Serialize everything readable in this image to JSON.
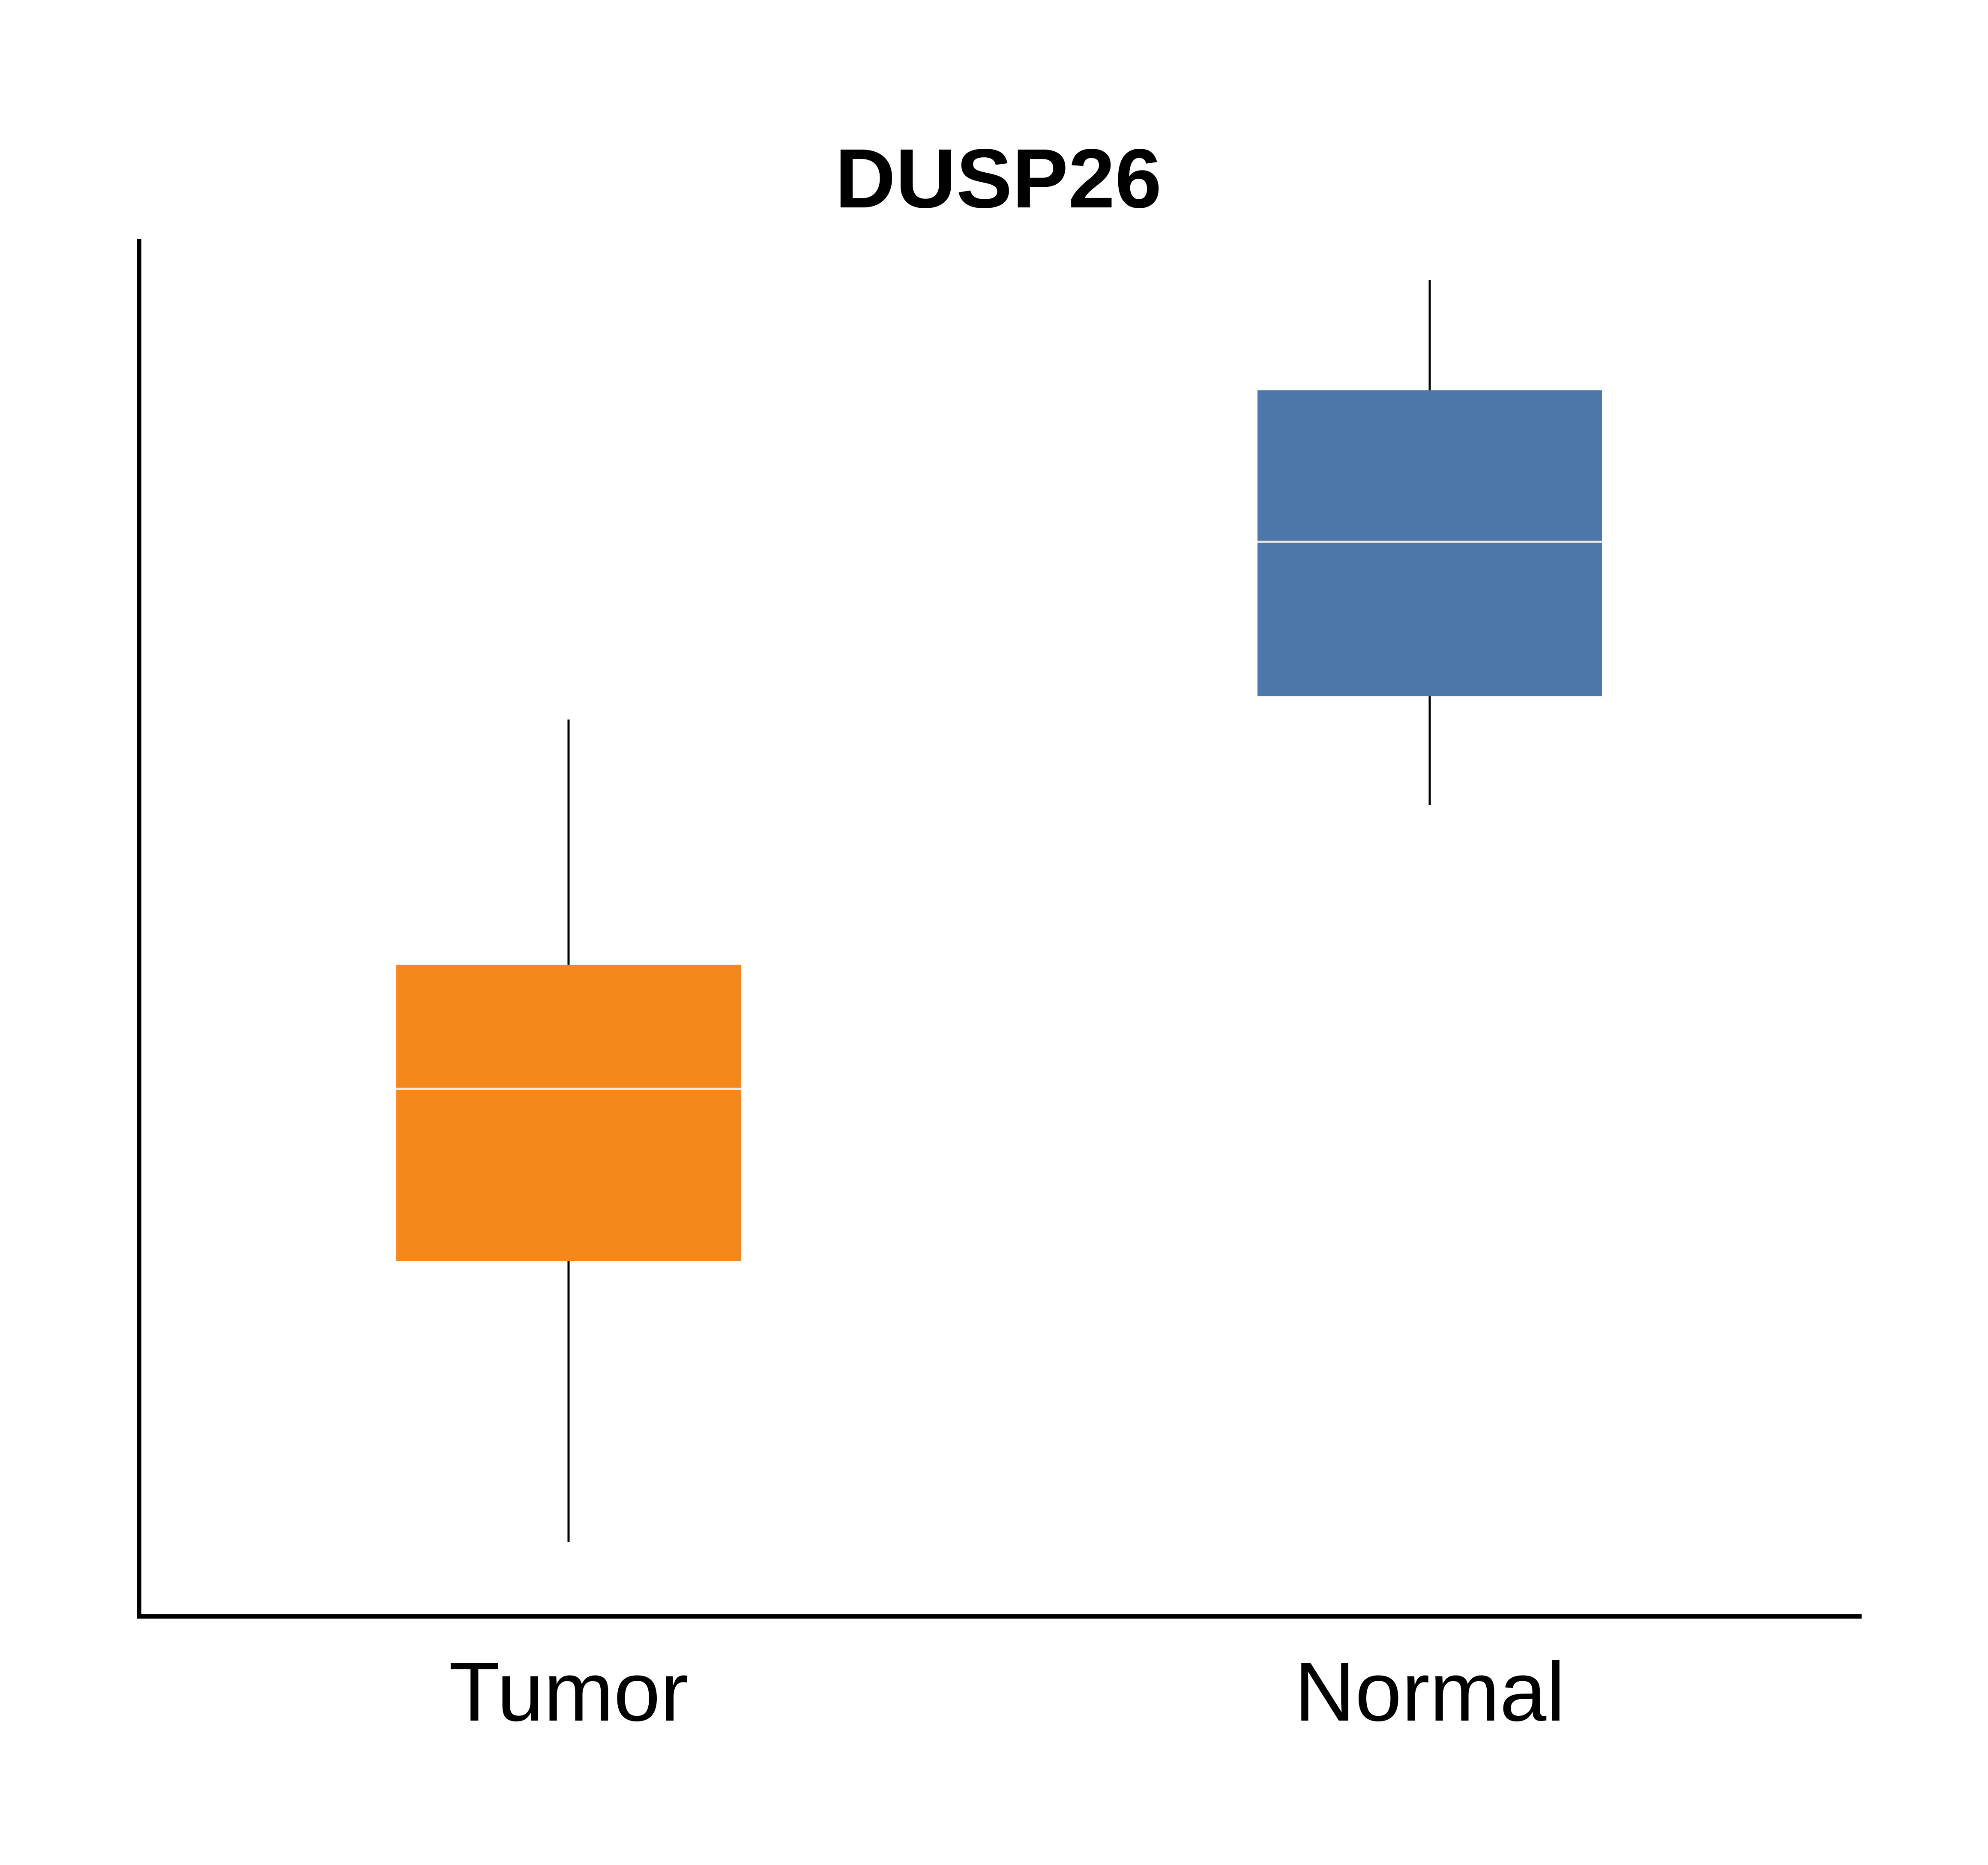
{
  "chart_data": {
    "type": "box",
    "title": "DUSP26",
    "xlabel": "",
    "ylabel": "",
    "categories": [
      "Tumor",
      "Normal"
    ],
    "ylim": [
      0,
      100
    ],
    "grid": false,
    "legend": "none",
    "boxes": [
      {
        "category": "Tumor",
        "whisker_low": 5.4,
        "q1": 25.8,
        "median": 38.3,
        "q3": 47.3,
        "whisker_high": 65.1,
        "color": "#f5881b"
      },
      {
        "category": "Normal",
        "whisker_low": 58.9,
        "q1": 66.8,
        "median": 78.0,
        "q3": 89.0,
        "whisker_high": 97.0,
        "color": "#4c77a8"
      }
    ],
    "median_line_color": "#e8e8e8",
    "whisker_color": "#000000",
    "axis_color": "#000000"
  }
}
